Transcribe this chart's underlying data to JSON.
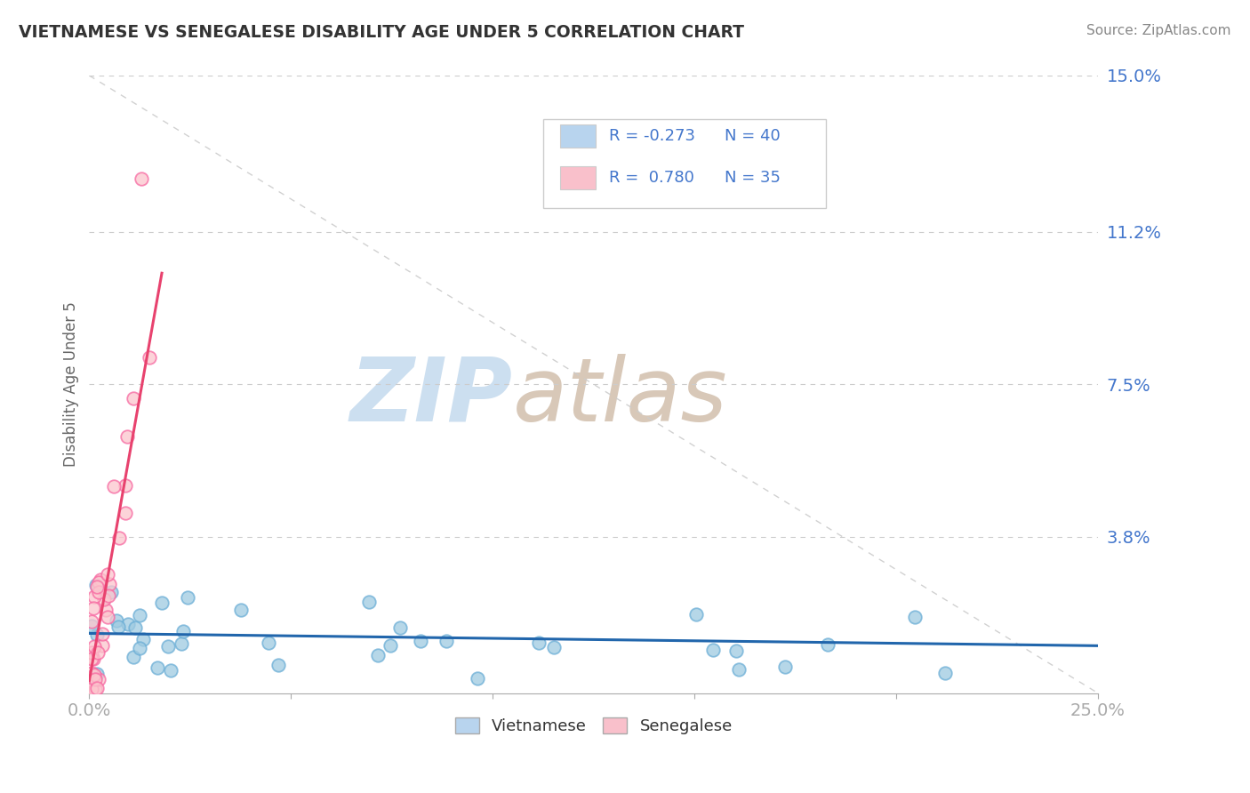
{
  "title": "VIETNAMESE VS SENEGALESE DISABILITY AGE UNDER 5 CORRELATION CHART",
  "source": "Source: ZipAtlas.com",
  "ylabel": "Disability Age Under 5",
  "xlim": [
    0.0,
    0.25
  ],
  "ylim": [
    0.0,
    0.15
  ],
  "ytick_labels": [
    "3.8%",
    "7.5%",
    "11.2%",
    "15.0%"
  ],
  "ytick_positions": [
    0.038,
    0.075,
    0.112,
    0.15
  ],
  "viet_color_edge": "#6baed6",
  "viet_color_fill": "#9ecae1",
  "sene_color_edge": "#f768a1",
  "sene_color_fill": "#fcc5cd",
  "viet_R": -0.273,
  "viet_N": 40,
  "sene_R": 0.78,
  "sene_N": 35,
  "legend_viet_color": "#b8d4ee",
  "legend_sene_color": "#f9c0cb",
  "blue_line_color": "#2166ac",
  "pink_line_color": "#e8426e",
  "watermark_zip_color": "#ccdff0",
  "watermark_atlas_color": "#d8c8b8",
  "background_color": "#ffffff",
  "title_color": "#333333",
  "source_color": "#888888",
  "tick_color": "#4477cc",
  "ylabel_color": "#666666",
  "grid_color": "#cccccc",
  "ref_line_color": "#cccccc"
}
